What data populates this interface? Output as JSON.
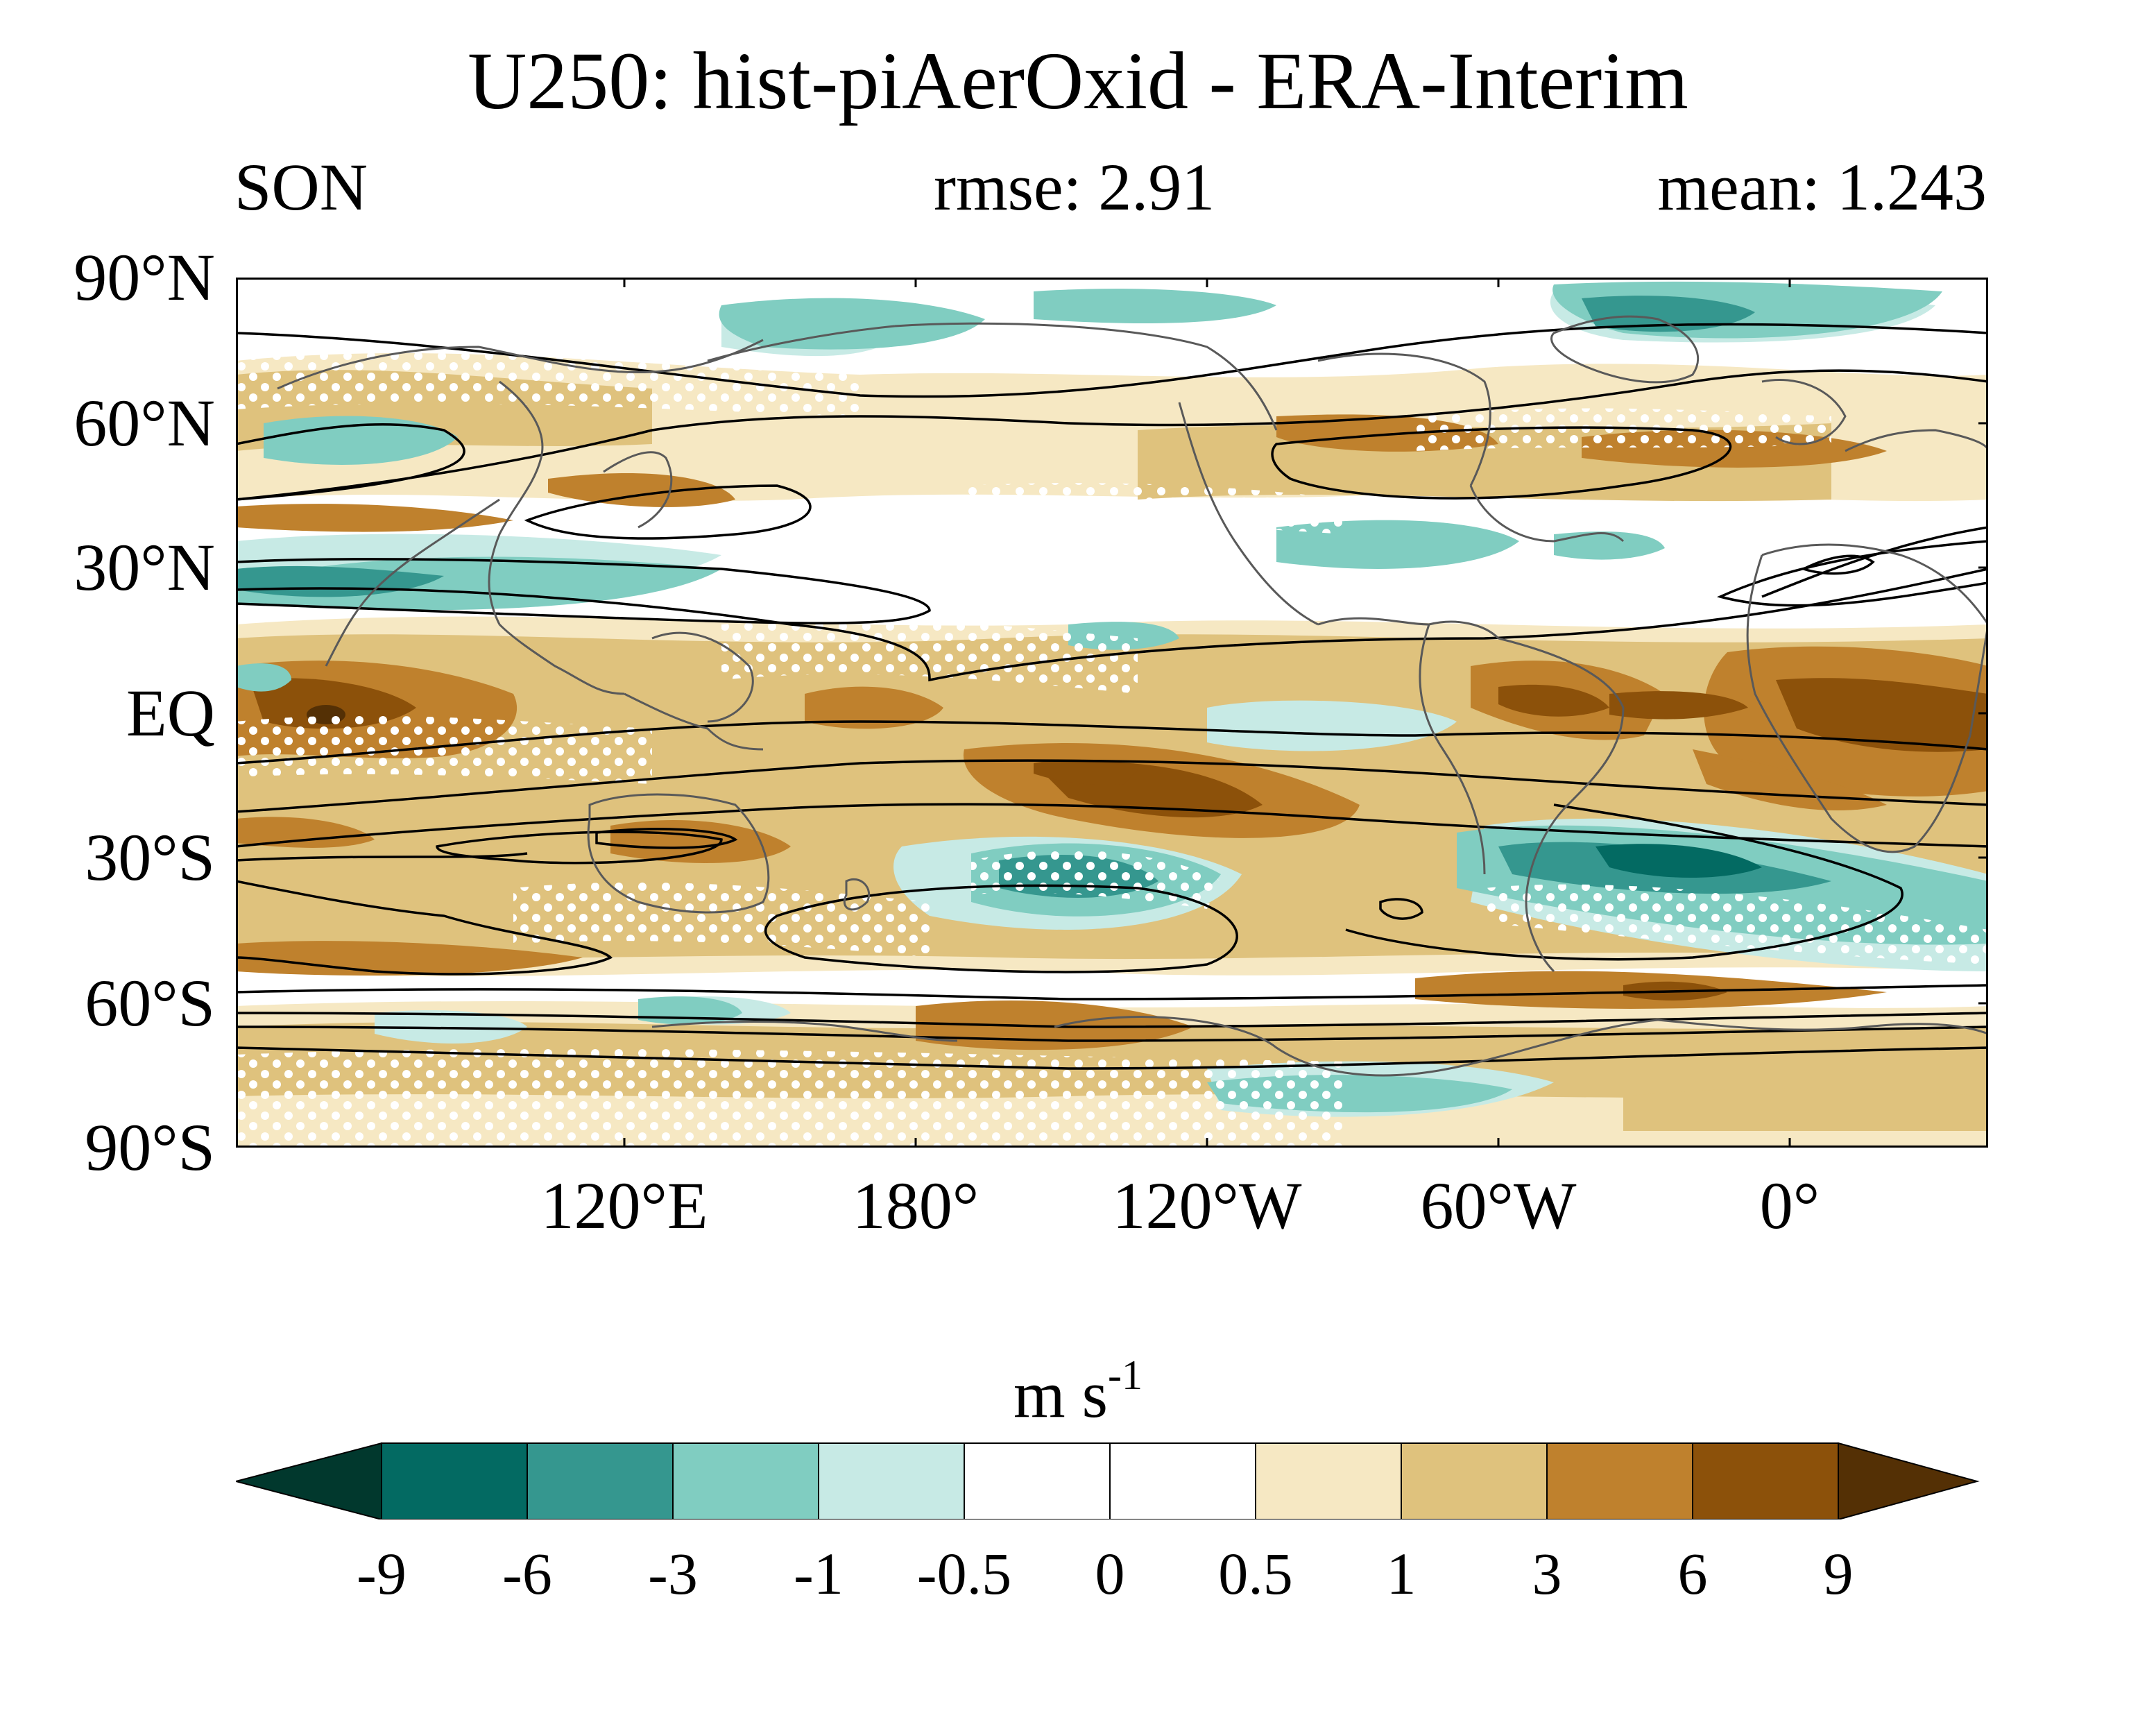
{
  "title": "U250: hist-piAerOxid - ERA-Interim",
  "season": "SON",
  "rmse": "rmse: 2.91",
  "mean": "mean: 1.243",
  "lat_labels": [
    "90°N",
    "60°N",
    "30°N",
    "EQ",
    "30°S",
    "60°S",
    "90°S"
  ],
  "lon_labels": [
    "120°E",
    "180°",
    "120°W",
    "60°W",
    "0°"
  ],
  "units_base": "m s",
  "units_exp": "-1",
  "colorbar": {
    "levels": [
      "-9",
      "-6",
      "-3",
      "-1",
      "-0.5",
      "0",
      "0.5",
      "1",
      "3",
      "6",
      "9"
    ],
    "colors": [
      "#01382d",
      "#036a62",
      "#35978f",
      "#80cdc1",
      "#c7eae5",
      "#ffffff",
      "#ffffff",
      "#f6e8c3",
      "#dfc27d",
      "#bf812d",
      "#8c510a",
      "#543005"
    ]
  },
  "colors": {
    "coast": "#595959",
    "contour": "#000000",
    "stipple": "#ffffff"
  }
}
